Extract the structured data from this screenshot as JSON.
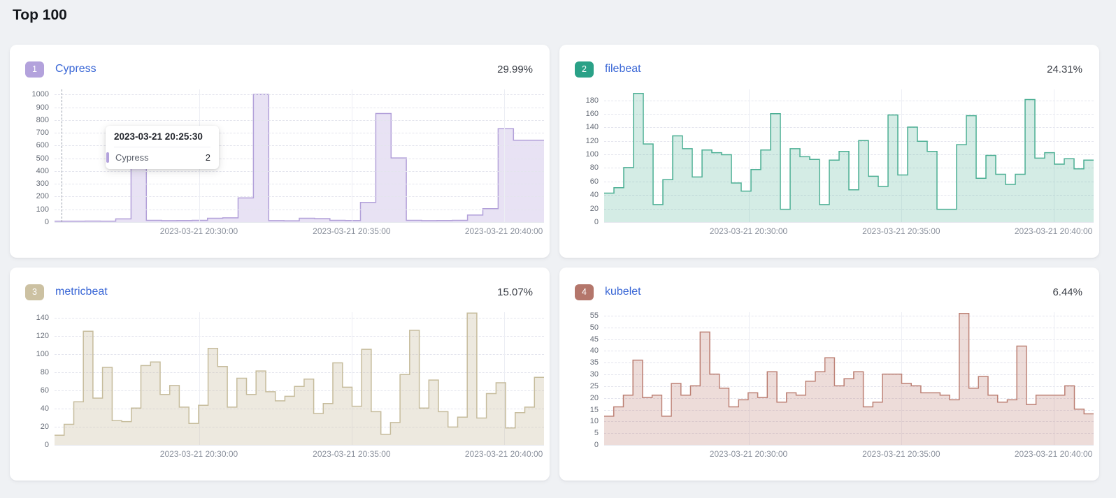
{
  "page": {
    "title": "Top 100"
  },
  "axis": {
    "x_labels": [
      "2023-03-21 20:30:00",
      "2023-03-21 20:35:00",
      "2023-03-21 20:40:00"
    ],
    "x_positions": [
      0.295,
      0.607,
      0.918
    ]
  },
  "tooltip": {
    "title": "2023-03-21 20:25:30",
    "series": "Cypress",
    "value": "2"
  },
  "chart_data": [
    {
      "type": "area",
      "rank": "1",
      "name": "Cypress",
      "percent": "29.99%",
      "badge_color": "#b3a2dc",
      "line_color": "#b2a0d9",
      "fill_opacity": 0.3,
      "ylim": [
        0,
        1040
      ],
      "yticks": [
        0,
        100,
        200,
        300,
        400,
        500,
        600,
        700,
        800,
        900,
        1000
      ],
      "values": [
        2,
        2,
        3,
        2,
        20,
        600,
        8,
        6,
        7,
        8,
        25,
        28,
        185,
        1000,
        6,
        5,
        25,
        22,
        8,
        7,
        150,
        850,
        500,
        8,
        6,
        7,
        8,
        50,
        100,
        730,
        640,
        640
      ],
      "has_tooltip": true
    },
    {
      "type": "area",
      "rank": "2",
      "name": "filebeat",
      "percent": "24.31%",
      "badge_color": "#2aa187",
      "line_color": "#4caf94",
      "fill_opacity": 0.24,
      "ylim": [
        0,
        196
      ],
      "yticks": [
        0,
        20,
        40,
        60,
        80,
        100,
        120,
        140,
        160,
        180
      ],
      "values": [
        42,
        50,
        80,
        190,
        115,
        25,
        62,
        127,
        108,
        66,
        106,
        102,
        99,
        57,
        45,
        77,
        106,
        160,
        18,
        108,
        96,
        92,
        25,
        91,
        104,
        47,
        120,
        67,
        52,
        158,
        69,
        140,
        119,
        104,
        18,
        18,
        114,
        157,
        64,
        98,
        70,
        55,
        70,
        181,
        94,
        102,
        85,
        93,
        78,
        91
      ],
      "has_tooltip": false
    },
    {
      "type": "area",
      "rank": "3",
      "name": "metricbeat",
      "percent": "15.07%",
      "badge_color": "#ccc1a2",
      "line_color": "#c6bc9c",
      "fill_opacity": 0.32,
      "ylim": [
        0,
        146
      ],
      "yticks": [
        0,
        20,
        40,
        60,
        80,
        100,
        120,
        140
      ],
      "values": [
        10,
        22,
        47,
        125,
        51,
        85,
        26,
        25,
        40,
        87,
        91,
        55,
        65,
        41,
        23,
        43,
        106,
        86,
        41,
        73,
        55,
        81,
        58,
        48,
        53,
        64,
        72,
        34,
        45,
        90,
        63,
        42,
        105,
        36,
        11,
        24,
        77,
        126,
        40,
        71,
        36,
        19,
        30,
        145,
        29,
        56,
        68,
        18,
        35,
        41,
        74
      ],
      "has_tooltip": false
    },
    {
      "type": "area",
      "rank": "4",
      "name": "kubelet",
      "percent": "6.44%",
      "badge_color": "#b4766b",
      "line_color": "#bd8175",
      "fill_opacity": 0.28,
      "ylim": [
        0,
        56.5
      ],
      "yticks": [
        0,
        5,
        10,
        15,
        20,
        25,
        30,
        35,
        40,
        45,
        50,
        55
      ],
      "values": [
        12,
        16,
        21,
        36,
        20,
        21,
        12,
        26,
        21,
        25,
        48,
        30,
        24,
        16,
        19,
        22,
        20,
        31,
        18,
        22,
        21,
        27,
        31,
        37,
        25,
        28,
        31,
        16,
        18,
        30,
        30,
        26,
        25,
        22,
        22,
        21,
        19,
        56,
        24,
        29,
        21,
        18,
        19,
        42,
        17,
        21,
        21,
        21,
        25,
        15,
        13
      ],
      "has_tooltip": false
    }
  ]
}
